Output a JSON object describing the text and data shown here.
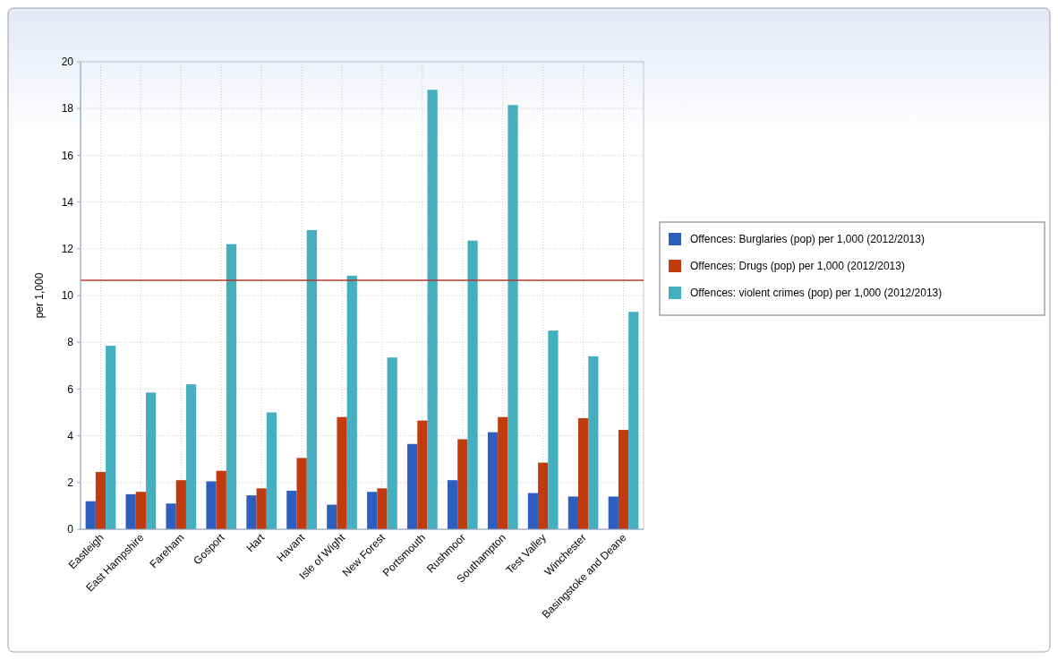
{
  "chart_data": {
    "type": "bar",
    "ylabel": "per 1,000",
    "categories": [
      "Eastleigh",
      "East Hampshire",
      "Fareham",
      "Gosport",
      "Hart",
      "Havant",
      "Isle of Wight",
      "New Forest",
      "Portsmouth",
      "Rushmoor",
      "Southampton",
      "Test Valley",
      "Winchester",
      "Basingstoke and Deane"
    ],
    "series": [
      {
        "name": "Offences: Burglaries (pop) per 1,000 (2012/2013)",
        "color": "#2e5fbf",
        "values": [
          1.2,
          1.5,
          1.1,
          2.05,
          1.45,
          1.65,
          1.05,
          1.6,
          3.65,
          2.1,
          4.15,
          1.55,
          1.4,
          1.4
        ]
      },
      {
        "name": "Offences: Drugs (pop) per 1,000 (2012/2013)",
        "color": "#c23b0e",
        "values": [
          2.45,
          1.6,
          2.1,
          2.5,
          1.75,
          3.05,
          4.8,
          1.75,
          4.65,
          3.85,
          4.8,
          2.85,
          4.75,
          4.25
        ]
      },
      {
        "name": "Offences: violent crimes (pop) per 1,000 (2012/2013)",
        "color": "#45afc0",
        "values": [
          7.85,
          5.85,
          6.2,
          12.2,
          5.0,
          12.8,
          10.85,
          7.35,
          18.8,
          12.35,
          18.15,
          8.5,
          7.4,
          9.3
        ]
      }
    ],
    "ylim": [
      0,
      20
    ],
    "yticks": [
      0,
      2,
      4,
      6,
      8,
      10,
      12,
      14,
      16,
      18,
      20
    ],
    "grid": true,
    "legend": "right",
    "ref_lines": [
      {
        "axis": "y",
        "value": 10.65,
        "color": "#b03a2e"
      }
    ]
  }
}
